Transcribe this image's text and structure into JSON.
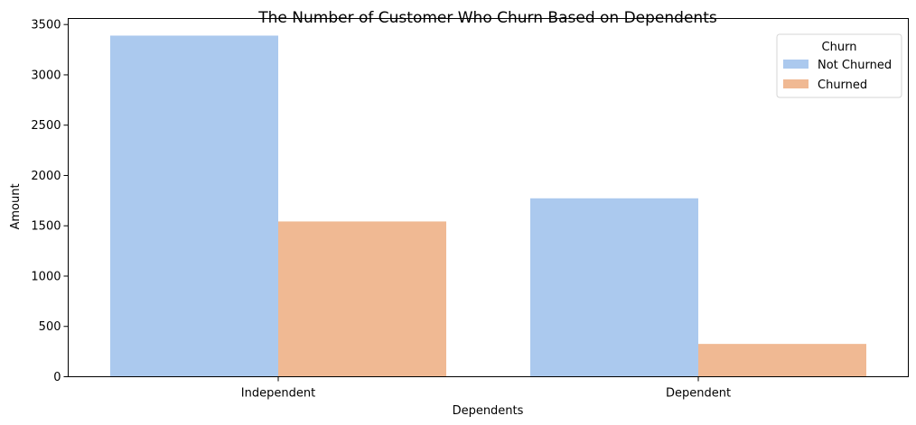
{
  "chart_data": {
    "type": "bar",
    "title": "The Number of Customer Who Churn Based on Dependents",
    "xlabel": "Dependents",
    "ylabel": "Amount",
    "categories": [
      "Independent",
      "Dependent"
    ],
    "series": [
      {
        "name": "Not Churned",
        "values": [
          3390,
          1773
        ],
        "color": "#abc9ee"
      },
      {
        "name": "Churned",
        "values": [
          1543,
          326
        ],
        "color": "#f0b993"
      }
    ],
    "ylim": [
      0,
      3560
    ],
    "yticks": [
      0,
      500,
      1000,
      1500,
      2000,
      2500,
      3000,
      3500
    ],
    "grid": false,
    "legend": {
      "title": "Churn",
      "placement": "top-right"
    }
  }
}
